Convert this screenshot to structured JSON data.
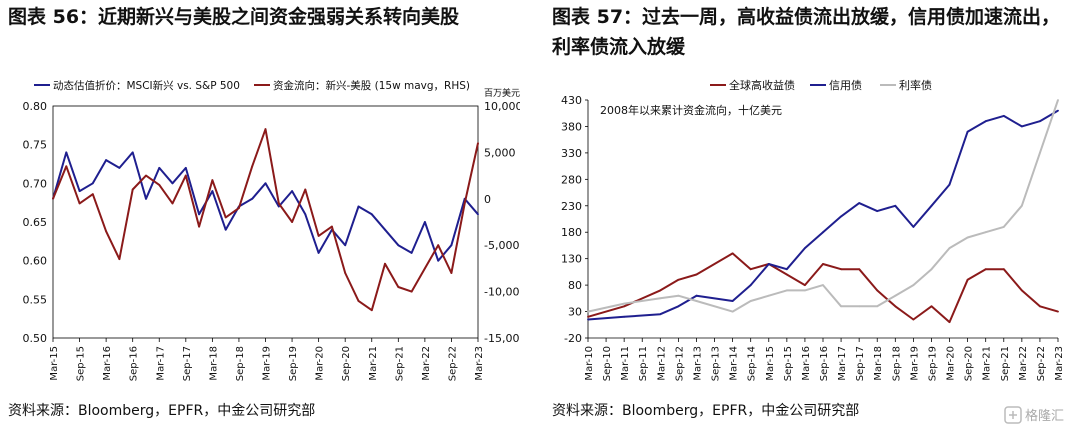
{
  "page": {
    "title_left": "图表 56：近期新兴与美股之间资金强弱关系转向美股",
    "title_right_line1": "图表 57：过去一周，高收益债流出放缓，信用债加速流出，",
    "title_right_line2": "利率债流入放缓",
    "source_left": "资料来源：Bloomberg，EPFR，中金公司研究部",
    "source_right": "资料来源：Bloomberg，EPFR，中金公司研究部",
    "watermark": "格隆汇"
  },
  "chart_data": [
    {
      "type": "line",
      "legend": [
        "动态估值折价：MSCI新兴 vs. S&P 500",
        "资金流向：新兴-美股 (15w mavg，RHS)"
      ],
      "right_axis_unit": "百万美元",
      "x_ticks": [
        "Mar-15",
        "Sep-15",
        "Mar-16",
        "Sep-16",
        "Mar-17",
        "Sep-17",
        "Mar-18",
        "Sep-18",
        "Mar-19",
        "Sep-19",
        "Mar-20",
        "Sep-20",
        "Mar-21",
        "Sep-21",
        "Mar-22",
        "Sep-22",
        "Mar-23"
      ],
      "y_left_ticks": [
        "0.80",
        "0.75",
        "0.70",
        "0.65",
        "0.60",
        "0.55",
        "0.50"
      ],
      "y_right_ticks": [
        "10,000",
        "5,000",
        "0",
        "-5,000",
        "-10,000",
        "-15,000"
      ],
      "ylim_left": [
        0.5,
        0.8
      ],
      "ylim_right": [
        -15000,
        10000
      ],
      "series": [
        {
          "name": "动态估值折价：MSCI新兴 vs. S&P 500",
          "color": "#1f1f8f",
          "axis": "left",
          "x": [
            "Mar-15",
            "Jun-15",
            "Sep-15",
            "Dec-15",
            "Mar-16",
            "Jun-16",
            "Sep-16",
            "Dec-16",
            "Mar-17",
            "Jun-17",
            "Sep-17",
            "Dec-17",
            "Mar-18",
            "Jun-18",
            "Sep-18",
            "Dec-18",
            "Mar-19",
            "Jun-19",
            "Sep-19",
            "Dec-19",
            "Mar-20",
            "Jun-20",
            "Sep-20",
            "Dec-20",
            "Mar-21",
            "Jun-21",
            "Sep-21",
            "Dec-21",
            "Mar-22",
            "Jun-22",
            "Sep-22",
            "Dec-22",
            "Mar-23"
          ],
          "values": [
            0.68,
            0.74,
            0.69,
            0.7,
            0.73,
            0.72,
            0.74,
            0.68,
            0.72,
            0.7,
            0.72,
            0.66,
            0.69,
            0.64,
            0.67,
            0.68,
            0.7,
            0.67,
            0.69,
            0.66,
            0.61,
            0.64,
            0.62,
            0.67,
            0.66,
            0.64,
            0.62,
            0.61,
            0.65,
            0.6,
            0.62,
            0.68,
            0.66
          ]
        },
        {
          "name": "资金流向：新兴-美股 (15w mavg，RHS)",
          "color": "#8b1a1a",
          "axis": "right",
          "x": [
            "Mar-15",
            "Jun-15",
            "Sep-15",
            "Dec-15",
            "Mar-16",
            "Jun-16",
            "Sep-16",
            "Dec-16",
            "Mar-17",
            "Jun-17",
            "Sep-17",
            "Dec-17",
            "Mar-18",
            "Jun-18",
            "Sep-18",
            "Dec-18",
            "Mar-19",
            "Jun-19",
            "Sep-19",
            "Dec-19",
            "Mar-20",
            "Jun-20",
            "Sep-20",
            "Dec-20",
            "Mar-21",
            "Jun-21",
            "Sep-21",
            "Dec-21",
            "Mar-22",
            "Jun-22",
            "Sep-22",
            "Dec-22",
            "Mar-23"
          ],
          "values": [
            0,
            3500,
            -500,
            500,
            -3500,
            -6500,
            1000,
            2500,
            1500,
            -500,
            2500,
            -3000,
            2000,
            -2000,
            -1000,
            3500,
            7500,
            -500,
            -2500,
            1000,
            -4000,
            -3000,
            -8000,
            -11000,
            -12000,
            -7000,
            -9500,
            -10000,
            -7500,
            -5000,
            -8000,
            -500,
            6000
          ]
        }
      ]
    },
    {
      "type": "line",
      "legend": [
        "全球高收益债",
        "信用债",
        "利率债"
      ],
      "annotation": "2008年以来累计资金流向，十亿美元",
      "x_ticks": [
        "Mar-10",
        "Sep-10",
        "Mar-11",
        "Sep-11",
        "Mar-12",
        "Sep-12",
        "Mar-13",
        "Sep-13",
        "Mar-14",
        "Sep-14",
        "Mar-15",
        "Sep-15",
        "Mar-16",
        "Sep-16",
        "Mar-17",
        "Sep-17",
        "Mar-18",
        "Sep-18",
        "Mar-19",
        "Sep-19",
        "Mar-20",
        "Sep-20",
        "Mar-21",
        "Sep-21",
        "Mar-22",
        "Sep-22",
        "Mar-23"
      ],
      "y_ticks": [
        "430",
        "380",
        "330",
        "280",
        "230",
        "180",
        "130",
        "80",
        "30",
        "-20"
      ],
      "ylim": [
        -20,
        430
      ],
      "series": [
        {
          "name": "全球高收益债",
          "color": "#8b1a1a",
          "x": [
            "Mar-10",
            "Mar-11",
            "Mar-12",
            "Sep-12",
            "Mar-13",
            "Mar-14",
            "Sep-14",
            "Mar-15",
            "Sep-15",
            "Mar-16",
            "Sep-16",
            "Mar-17",
            "Sep-17",
            "Mar-18",
            "Sep-18",
            "Mar-19",
            "Sep-19",
            "Mar-20",
            "Sep-20",
            "Mar-21",
            "Sep-21",
            "Mar-22",
            "Sep-22",
            "Mar-23"
          ],
          "values": [
            20,
            40,
            70,
            90,
            100,
            140,
            110,
            120,
            100,
            80,
            120,
            110,
            110,
            70,
            40,
            15,
            40,
            10,
            90,
            110,
            110,
            70,
            40,
            30
          ]
        },
        {
          "name": "信用债",
          "color": "#1f1f8f",
          "x": [
            "Mar-10",
            "Mar-11",
            "Mar-12",
            "Sep-12",
            "Mar-13",
            "Mar-14",
            "Sep-14",
            "Mar-15",
            "Sep-15",
            "Mar-16",
            "Sep-16",
            "Mar-17",
            "Sep-17",
            "Mar-18",
            "Sep-18",
            "Mar-19",
            "Sep-19",
            "Mar-20",
            "Sep-20",
            "Mar-21",
            "Sep-21",
            "Mar-22",
            "Sep-22",
            "Mar-23"
          ],
          "values": [
            15,
            20,
            25,
            40,
            60,
            50,
            80,
            120,
            110,
            150,
            180,
            210,
            235,
            220,
            230,
            190,
            230,
            270,
            370,
            390,
            400,
            380,
            390,
            410
          ]
        },
        {
          "name": "利率债",
          "color": "#bbbbbb",
          "x": [
            "Mar-10",
            "Mar-11",
            "Mar-12",
            "Sep-12",
            "Mar-13",
            "Mar-14",
            "Sep-14",
            "Mar-15",
            "Sep-15",
            "Mar-16",
            "Sep-16",
            "Mar-17",
            "Sep-17",
            "Mar-18",
            "Sep-18",
            "Mar-19",
            "Sep-19",
            "Mar-20",
            "Sep-20",
            "Mar-21",
            "Sep-21",
            "Mar-22",
            "Sep-22",
            "Mar-23"
          ],
          "values": [
            30,
            45,
            55,
            60,
            50,
            30,
            50,
            60,
            70,
            70,
            80,
            40,
            40,
            40,
            60,
            80,
            110,
            150,
            170,
            180,
            190,
            230,
            330,
            430
          ]
        }
      ]
    }
  ]
}
